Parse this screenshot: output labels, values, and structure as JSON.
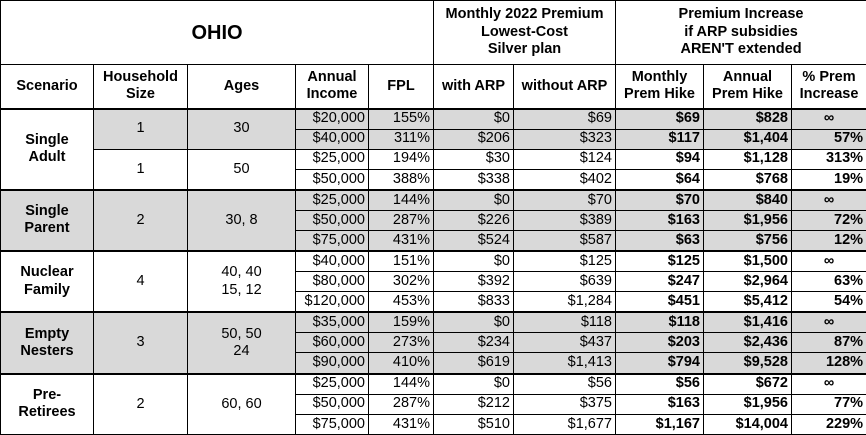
{
  "header": {
    "title": "OHIO",
    "premium_group": "Monthly 2022 Premium\nLowest-Cost\nSilver plan",
    "increase_group": "Premium Increase\nif ARP subsidies\nAREN'T extended",
    "columns": [
      "Scenario",
      "Household\nSize",
      "Ages",
      "Annual\nIncome",
      "FPL",
      "with ARP",
      "without ARP",
      "Monthly\nPrem Hike",
      "Annual\nPrem Hike",
      "% Prem\nIncrease"
    ]
  },
  "groups": [
    {
      "scenario": "Single\nAdult",
      "subgroups": [
        {
          "household_size": "1",
          "ages": "30",
          "rows": [
            [
              "$20,000",
              "155%",
              "$0",
              "$69",
              "$69",
              "$828",
              "∞"
            ],
            [
              "$40,000",
              "311%",
              "$206",
              "$323",
              "$117",
              "$1,404",
              "57%"
            ]
          ]
        },
        {
          "household_size": "1",
          "ages": "50",
          "rows": [
            [
              "$25,000",
              "194%",
              "$30",
              "$124",
              "$94",
              "$1,128",
              "313%"
            ],
            [
              "$50,000",
              "388%",
              "$338",
              "$402",
              "$64",
              "$768",
              "19%"
            ]
          ]
        }
      ]
    },
    {
      "scenario": "Single\nParent",
      "subgroups": [
        {
          "household_size": "2",
          "ages": "30, 8",
          "rows": [
            [
              "$25,000",
              "144%",
              "$0",
              "$70",
              "$70",
              "$840",
              "∞"
            ],
            [
              "$50,000",
              "287%",
              "$226",
              "$389",
              "$163",
              "$1,956",
              "72%"
            ],
            [
              "$75,000",
              "431%",
              "$524",
              "$587",
              "$63",
              "$756",
              "12%"
            ]
          ]
        }
      ]
    },
    {
      "scenario": "Nuclear\nFamily",
      "subgroups": [
        {
          "household_size": "4",
          "ages": "40, 40\n15, 12",
          "rows": [
            [
              "$40,000",
              "151%",
              "$0",
              "$125",
              "$125",
              "$1,500",
              "∞"
            ],
            [
              "$80,000",
              "302%",
              "$392",
              "$639",
              "$247",
              "$2,964",
              "63%"
            ],
            [
              "$120,000",
              "453%",
              "$833",
              "$1,284",
              "$451",
              "$5,412",
              "54%"
            ]
          ]
        }
      ]
    },
    {
      "scenario": "Empty\nNesters",
      "subgroups": [
        {
          "household_size": "3",
          "ages": "50, 50\n24",
          "rows": [
            [
              "$35,000",
              "159%",
              "$0",
              "$118",
              "$118",
              "$1,416",
              "∞"
            ],
            [
              "$60,000",
              "273%",
              "$234",
              "$437",
              "$203",
              "$2,436",
              "87%"
            ],
            [
              "$90,000",
              "410%",
              "$619",
              "$1,413",
              "$794",
              "$9,528",
              "128%"
            ]
          ]
        }
      ]
    },
    {
      "scenario": "Pre-\nRetirees",
      "subgroups": [
        {
          "household_size": "2",
          "ages": "60, 60",
          "rows": [
            [
              "$25,000",
              "144%",
              "$0",
              "$56",
              "$56",
              "$672",
              "∞"
            ],
            [
              "$50,000",
              "287%",
              "$212",
              "$375",
              "$163",
              "$1,956",
              "77%"
            ],
            [
              "$75,000",
              "431%",
              "$510",
              "$1,677",
              "$1,167",
              "$14,004",
              "229%"
            ]
          ]
        }
      ]
    }
  ]
}
